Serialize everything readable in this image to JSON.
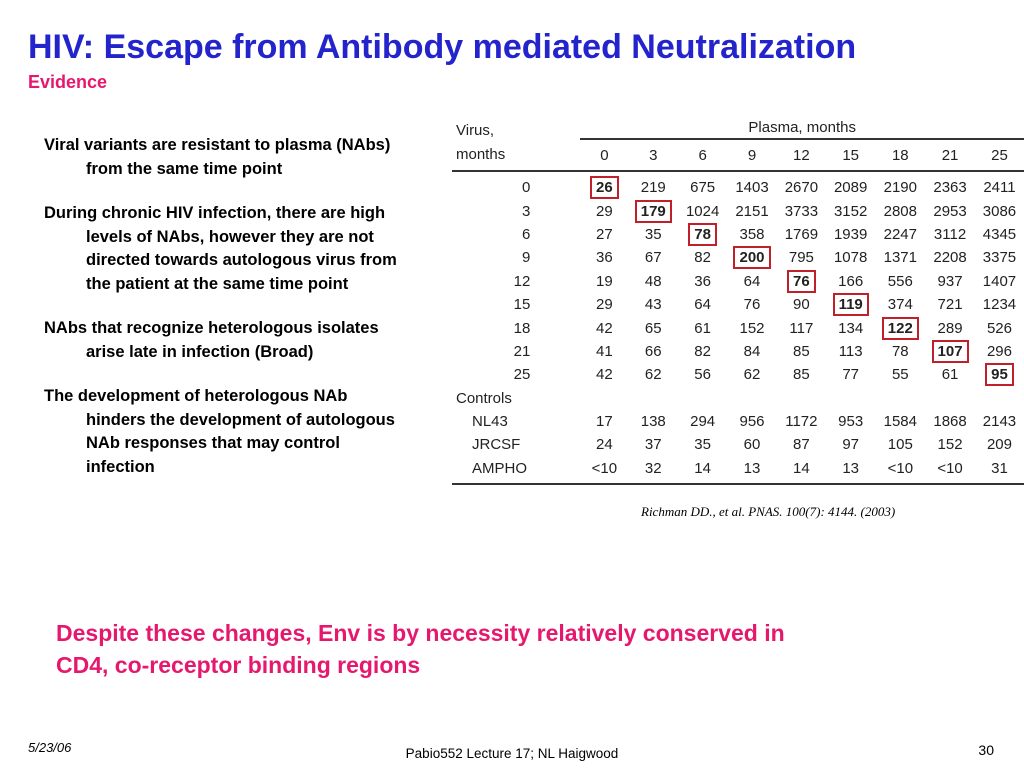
{
  "slide": {
    "title": "HIV: Escape from Antibody mediated Neutralization",
    "subtitle": "Evidence",
    "bullets": [
      "Viral variants are resistant to plasma (NAbs) from the same time point",
      "During chronic HIV infection, there are high levels of NAbs, however they are not directed towards autologous virus from the patient at the same time point",
      "NAbs that recognize heterologous isolates arise late in infection (Broad)",
      "The development of heterologous NAb hinders the development of autologous NAb responses that may control infection"
    ],
    "conclusion": "Despite these changes, Env is by necessity relatively conserved in CD4, co-receptor binding regions",
    "citation": "Richman DD.,  et al. PNAS. 100(7): 4144. (2003)",
    "footer": {
      "date": "5/23/06",
      "lecture": "Pabio552 Lecture 17;  NL Haigwood",
      "page": "30"
    }
  },
  "table": {
    "plasma_header": "Plasma, months",
    "virus_header_line1": "Virus,",
    "virus_header_line2": "months",
    "columns": [
      "0",
      "3",
      "6",
      "9",
      "12",
      "15",
      "18",
      "21",
      "25"
    ],
    "rows": [
      {
        "label": "0",
        "values": [
          "26",
          "219",
          "675",
          "1403",
          "2670",
          "2089",
          "2190",
          "2363",
          "2411"
        ],
        "boxed": 0
      },
      {
        "label": "3",
        "values": [
          "29",
          "179",
          "1024",
          "2151",
          "3733",
          "3152",
          "2808",
          "2953",
          "3086"
        ],
        "boxed": 1
      },
      {
        "label": "6",
        "values": [
          "27",
          "35",
          "78",
          "358",
          "1769",
          "1939",
          "2247",
          "3112",
          "4345"
        ],
        "boxed": 2
      },
      {
        "label": "9",
        "values": [
          "36",
          "67",
          "82",
          "200",
          "795",
          "1078",
          "1371",
          "2208",
          "3375"
        ],
        "boxed": 3
      },
      {
        "label": "12",
        "values": [
          "19",
          "48",
          "36",
          "64",
          "76",
          "166",
          "556",
          "937",
          "1407"
        ],
        "boxed": 4
      },
      {
        "label": "15",
        "values": [
          "29",
          "43",
          "64",
          "76",
          "90",
          "119",
          "374",
          "721",
          "1234"
        ],
        "boxed": 5
      },
      {
        "label": "18",
        "values": [
          "42",
          "65",
          "61",
          "152",
          "117",
          "134",
          "122",
          "289",
          "526"
        ],
        "boxed": 6
      },
      {
        "label": "21",
        "values": [
          "41",
          "66",
          "82",
          "84",
          "85",
          "113",
          "78",
          "107",
          "296"
        ],
        "boxed": 7
      },
      {
        "label": "25",
        "values": [
          "42",
          "62",
          "56",
          "62",
          "85",
          "77",
          "55",
          "61",
          "95"
        ],
        "boxed": 8
      }
    ],
    "controls_label": "Controls",
    "controls": [
      {
        "label": "NL43",
        "values": [
          "17",
          "138",
          "294",
          "956",
          "1172",
          "953",
          "1584",
          "1868",
          "2143"
        ]
      },
      {
        "label": "JRCSF",
        "values": [
          "24",
          "37",
          "35",
          "60",
          "87",
          "97",
          "105",
          "152",
          "209"
        ]
      },
      {
        "label": "AMPHO",
        "values": [
          "<10",
          "32",
          "14",
          "13",
          "14",
          "13",
          "<10",
          "<10",
          "31"
        ]
      }
    ]
  },
  "colors": {
    "title": "#2424cc",
    "accent": "#e6186e",
    "box": "#c0202a"
  }
}
